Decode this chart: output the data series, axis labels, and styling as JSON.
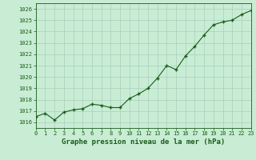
{
  "x": [
    0,
    1,
    2,
    3,
    4,
    5,
    6,
    7,
    8,
    9,
    10,
    11,
    12,
    13,
    14,
    15,
    16,
    17,
    18,
    19,
    20,
    21,
    22,
    23
  ],
  "y": [
    1016.5,
    1016.8,
    1016.2,
    1016.9,
    1017.1,
    1017.2,
    1017.6,
    1017.5,
    1017.3,
    1017.3,
    1018.1,
    1018.5,
    1019.0,
    1019.9,
    1021.0,
    1020.65,
    1021.85,
    1022.7,
    1023.7,
    1024.6,
    1024.85,
    1025.0,
    1025.5,
    1025.85
  ],
  "xlim": [
    0,
    23
  ],
  "ylim": [
    1015.5,
    1026.5
  ],
  "yticks": [
    1016,
    1017,
    1018,
    1019,
    1020,
    1021,
    1022,
    1023,
    1024,
    1025,
    1026
  ],
  "xticks": [
    0,
    1,
    2,
    3,
    4,
    5,
    6,
    7,
    8,
    9,
    10,
    11,
    12,
    13,
    14,
    15,
    16,
    17,
    18,
    19,
    20,
    21,
    22,
    23
  ],
  "xlabel": "Graphe pression niveau de la mer (hPa)",
  "line_color": "#1a5c1a",
  "marker_color": "#1a5c1a",
  "bg_color": "#c8ecd4",
  "grid_color": "#aed4be",
  "tick_label_color": "#1a5c1a",
  "xlabel_color": "#1a5c1a",
  "tick_fontsize": 5.0,
  "xlabel_fontsize": 6.5
}
